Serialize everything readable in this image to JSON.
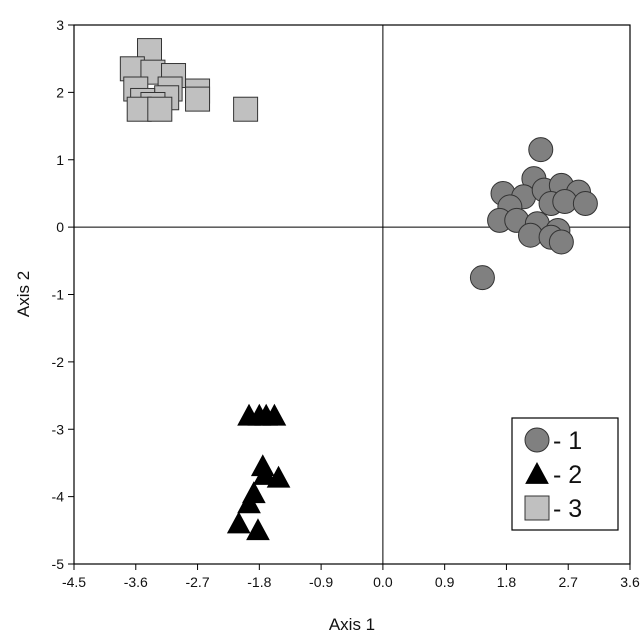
{
  "chart_data": {
    "type": "scatter",
    "xlabel": "Axis 1",
    "ylabel": "Axis 2",
    "xlim": [
      -4.5,
      3.6
    ],
    "ylim": [
      -5,
      3
    ],
    "xticks": [
      "-4.5",
      "-3.6",
      "-2.7",
      "-1.8",
      "-0.9",
      "0.0",
      "0.9",
      "1.8",
      "2.7",
      "3.6"
    ],
    "yticks": [
      "-5",
      "-4",
      "-3",
      "-2",
      "-1",
      "0",
      "1",
      "2",
      "3"
    ],
    "reference_lines": {
      "x": 0,
      "y": 0
    },
    "legend_position": "bottom-right",
    "series": [
      {
        "name": "- 1",
        "marker": "circle",
        "color": "#808080",
        "points": [
          [
            2.3,
            1.15
          ],
          [
            2.2,
            0.72
          ],
          [
            1.75,
            0.5
          ],
          [
            2.05,
            0.45
          ],
          [
            2.35,
            0.55
          ],
          [
            2.6,
            0.62
          ],
          [
            2.85,
            0.52
          ],
          [
            1.85,
            0.3
          ],
          [
            2.45,
            0.35
          ],
          [
            2.65,
            0.38
          ],
          [
            2.95,
            0.35
          ],
          [
            1.7,
            0.1
          ],
          [
            1.95,
            0.1
          ],
          [
            2.25,
            0.05
          ],
          [
            2.55,
            -0.05
          ],
          [
            2.15,
            -0.12
          ],
          [
            2.45,
            -0.15
          ],
          [
            2.6,
            -0.22
          ],
          [
            1.45,
            -0.75
          ]
        ]
      },
      {
        "name": "- 2",
        "marker": "triangle",
        "color": "#000000",
        "points": [
          [
            -1.95,
            -2.8
          ],
          [
            -1.8,
            -2.8
          ],
          [
            -1.7,
            -2.8
          ],
          [
            -1.58,
            -2.8
          ],
          [
            -1.75,
            -3.55
          ],
          [
            -1.72,
            -3.68
          ],
          [
            -1.52,
            -3.72
          ],
          [
            -1.88,
            -3.95
          ],
          [
            -1.95,
            -4.1
          ],
          [
            -2.1,
            -4.4
          ],
          [
            -1.82,
            -4.5
          ]
        ]
      },
      {
        "name": "- 3",
        "marker": "square",
        "color": "#c0c0c0",
        "points": [
          [
            -3.4,
            2.62
          ],
          [
            -3.65,
            2.35
          ],
          [
            -3.35,
            2.3
          ],
          [
            -3.05,
            2.25
          ],
          [
            -3.6,
            2.05
          ],
          [
            -3.1,
            2.05
          ],
          [
            -2.7,
            2.02
          ],
          [
            -2.7,
            1.9
          ],
          [
            -3.15,
            1.92
          ],
          [
            -3.5,
            1.88
          ],
          [
            -3.35,
            1.82
          ],
          [
            -3.55,
            1.75
          ],
          [
            -3.25,
            1.75
          ],
          [
            -2.0,
            1.75
          ]
        ]
      }
    ]
  }
}
